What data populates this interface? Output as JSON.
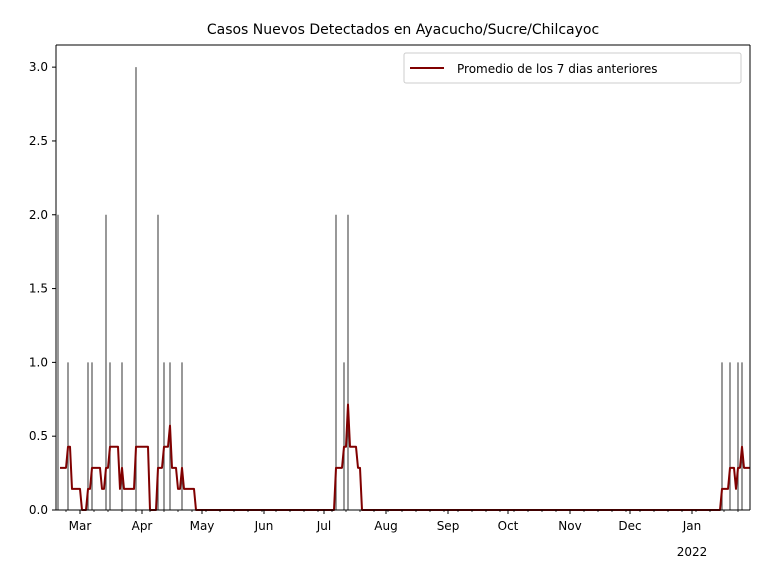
{
  "chart_data": {
    "type": "bar",
    "title": "Casos Nuevos Detectados en Ayacucho/Sucre/Chilcayoc",
    "xlabel": "",
    "ylabel": "",
    "ylim": [
      0,
      3.15
    ],
    "y_ticks": [
      "0.0",
      "0.5",
      "1.0",
      "1.5",
      "2.0",
      "2.5",
      "3.0"
    ],
    "x_ticks": [
      "Mar",
      "Apr",
      "May",
      "Jun",
      "Jul",
      "Aug",
      "Sep",
      "Oct",
      "Nov",
      "Dec",
      "Jan"
    ],
    "x_ticks_secondary": [
      "2022"
    ],
    "x_range": [
      "2021-02-17",
      "2022-01-30"
    ],
    "grid": false,
    "legend_position": "top-right",
    "bar_color": "#555555",
    "line_color": "#800000",
    "series": [
      {
        "kind": "bars",
        "points": [
          {
            "date": "2021-02-18",
            "value": 2
          },
          {
            "date": "2021-02-23",
            "value": 1
          },
          {
            "date": "2021-03-05",
            "value": 1
          },
          {
            "date": "2021-03-07",
            "value": 1
          },
          {
            "date": "2021-03-14",
            "value": 2
          },
          {
            "date": "2021-03-16",
            "value": 1
          },
          {
            "date": "2021-03-22",
            "value": 1
          },
          {
            "date": "2021-03-29",
            "value": 3
          },
          {
            "date": "2021-04-09",
            "value": 2
          },
          {
            "date": "2021-04-12",
            "value": 1
          },
          {
            "date": "2021-04-15",
            "value": 1
          },
          {
            "date": "2021-04-21",
            "value": 1
          },
          {
            "date": "2021-07-07",
            "value": 2
          },
          {
            "date": "2021-07-11",
            "value": 1
          },
          {
            "date": "2021-07-13",
            "value": 2
          },
          {
            "date": "2022-01-16",
            "value": 1
          },
          {
            "date": "2022-01-20",
            "value": 1
          },
          {
            "date": "2022-01-24",
            "value": 1
          },
          {
            "date": "2022-01-26",
            "value": 1
          }
        ]
      },
      {
        "kind": "line",
        "name": "Promedio de los 7 dias anteriores"
      }
    ]
  }
}
